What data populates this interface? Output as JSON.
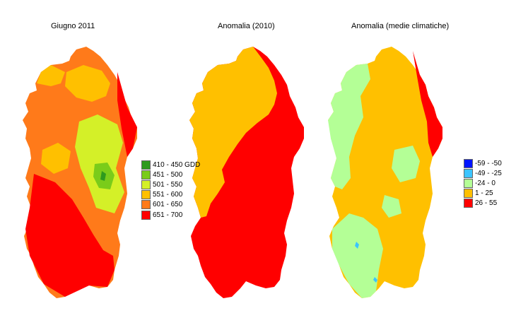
{
  "panels": [
    {
      "title": "Giugno 2011"
    },
    {
      "title": "Anomalia (2010)"
    },
    {
      "title": "Anomalia (medie climatiche)"
    }
  ],
  "legend_gdd": [
    {
      "label": "410 - 450 GDD",
      "color": "#2e9a1e"
    },
    {
      "label": "451 - 500",
      "color": "#7acc1a"
    },
    {
      "label": "501 - 550",
      "color": "#d4f028"
    },
    {
      "label": "551 - 600",
      "color": "#ffc000"
    },
    {
      "label": "601 - 650",
      "color": "#ff7a1a"
    },
    {
      "label": "651 - 700",
      "color": "#ff0000"
    }
  ],
  "legend_anomaly": [
    {
      "label": "-59 - -50",
      "color": "#0014ff"
    },
    {
      "label": "-49 - -25",
      "color": "#3cc4ff"
    },
    {
      "label": "-24 - 0",
      "color": "#b4ff96"
    },
    {
      "label": "1 - 25",
      "color": "#ffc000"
    },
    {
      "label": "26 - 55",
      "color": "#ff0000"
    }
  ]
}
